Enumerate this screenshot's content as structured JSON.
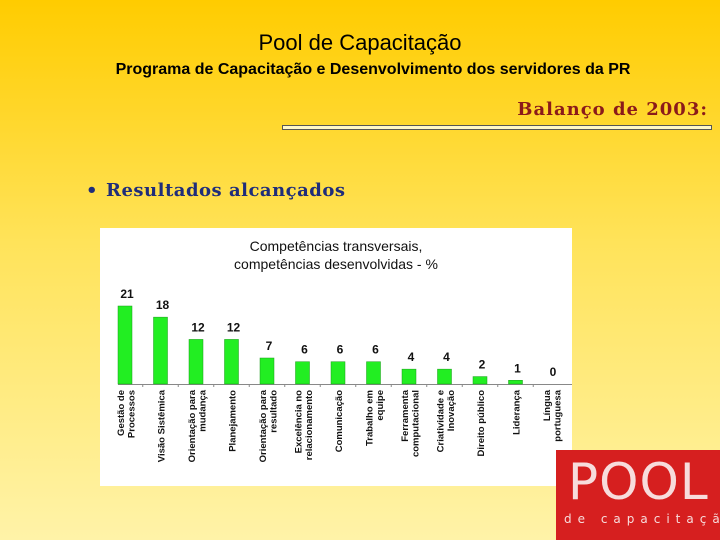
{
  "slide": {
    "title": "Pool de Capacitação",
    "subtitle": "Programa de Capacitação e Desenvolvimento dos servidores da PR",
    "balanco": "Balanço de 2003:",
    "bullet_marker": "•",
    "bullet_text": "Resultados alcançados"
  },
  "logo": {
    "main": "POOL",
    "sub": "de capacitação"
  },
  "colors": {
    "bar": "#22ee22",
    "logo_bg": "#d61f1f",
    "heading_red": "#8b1a1a",
    "bullet_blue": "#1f2d7a"
  },
  "chart_data": {
    "type": "bar",
    "title": [
      "Competências transversais,",
      "competências desenvolvidas - %"
    ],
    "categories": [
      [
        "Gestão de",
        "Processos"
      ],
      [
        "Visão Sistêmica"
      ],
      [
        "Orientação para",
        "mudança"
      ],
      [
        "Planejamento"
      ],
      [
        "Orientação para",
        "resultado"
      ],
      [
        "Excelência no",
        "relacionamento"
      ],
      [
        "Comunicação"
      ],
      [
        "Trabalho em",
        "equipe"
      ],
      [
        "Ferramenta",
        "computacional"
      ],
      [
        "Criatividade e",
        "Inovação"
      ],
      [
        "Direito público"
      ],
      [
        "Liderança"
      ],
      [
        "Língua",
        "portuguesa"
      ]
    ],
    "values": [
      21,
      18,
      12,
      12,
      7,
      6,
      6,
      6,
      4,
      4,
      2,
      1,
      0
    ],
    "ylim": [
      0,
      21
    ],
    "grid": false,
    "legend": "none"
  }
}
